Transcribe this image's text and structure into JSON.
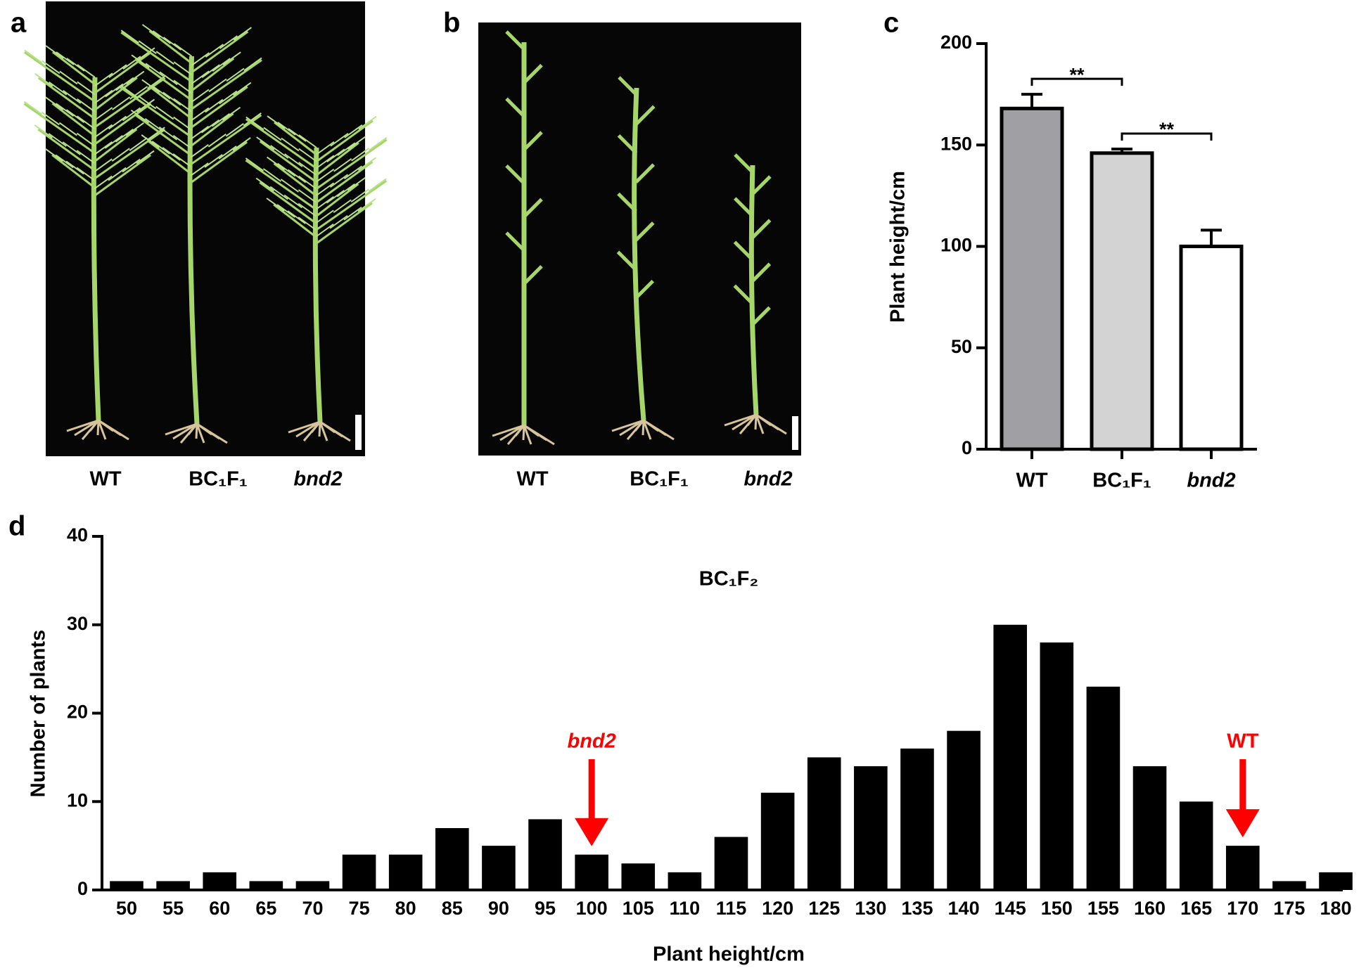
{
  "photos": [
    {
      "panel": "a",
      "labels": [
        "WT",
        "BC₁F₁",
        "bnd2"
      ],
      "label_styles": [
        "normal",
        "normal",
        "italic"
      ]
    },
    {
      "panel": "b",
      "labels": [
        "WT",
        "BC₁F₁",
        "bnd2"
      ],
      "label_styles": [
        "normal",
        "normal",
        "italic"
      ]
    }
  ],
  "chart_data": [
    {
      "type": "bar",
      "panel": "c",
      "categories": [
        "WT",
        "BC₁F₁",
        "bnd2"
      ],
      "category_styles": [
        "normal",
        "normal",
        "italic"
      ],
      "values": [
        168,
        146,
        100
      ],
      "errors": [
        7,
        2,
        8
      ],
      "colors": [
        "#a0a0a4",
        "#d3d3d3",
        "#ffffff"
      ],
      "ylabel": "Plant height/cm",
      "ylim": [
        0,
        200
      ],
      "yticks": [
        0,
        50,
        100,
        150,
        200
      ],
      "significance": [
        {
          "from": 0,
          "to": 1,
          "label": "**"
        },
        {
          "from": 1,
          "to": 2,
          "label": "**"
        }
      ]
    },
    {
      "type": "histbar",
      "panel": "d",
      "title": "BC₁F₂",
      "xlabel": "Plant height/cm",
      "ylabel": "Number of plants",
      "categories": [
        50,
        55,
        60,
        65,
        70,
        75,
        80,
        85,
        90,
        95,
        100,
        105,
        110,
        115,
        120,
        125,
        130,
        135,
        140,
        145,
        150,
        155,
        160,
        165,
        170,
        175,
        180
      ],
      "values": [
        1,
        1,
        2,
        1,
        1,
        4,
        4,
        7,
        5,
        8,
        4,
        3,
        2,
        6,
        11,
        15,
        14,
        16,
        18,
        30,
        28,
        23,
        14,
        10,
        5,
        1,
        2
      ],
      "color": "#000000",
      "ylim": [
        0,
        40
      ],
      "yticks": [
        0,
        10,
        20,
        30,
        40
      ],
      "annotations": [
        {
          "text": "bnd2",
          "x": 100,
          "color": "#ff0000",
          "style": "italic"
        },
        {
          "text": "WT",
          "x": 170,
          "color": "#ff0000",
          "style": "normal"
        }
      ]
    }
  ]
}
